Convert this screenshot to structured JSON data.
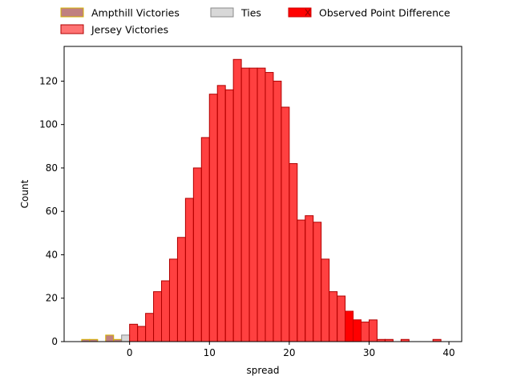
{
  "chart_data": {
    "type": "bar",
    "xlabel": "spread",
    "ylabel": "Count",
    "xlim": [
      -8.2,
      41.6
    ],
    "ylim": [
      0,
      136
    ],
    "x_ticks": [
      0,
      10,
      20,
      30,
      40
    ],
    "y_ticks": [
      0,
      20,
      40,
      60,
      80,
      100,
      120
    ],
    "bin_width": 1,
    "grid": false,
    "legend_position": "top",
    "colors": {
      "ampthill": "#c08080",
      "ampthill_edge": "#d4b000",
      "jersey": "#ff0000",
      "ties": "#d8d8d8",
      "observed": "#ff0000"
    },
    "legend": [
      {
        "label": "Ampthill Victories",
        "key": "ampthill"
      },
      {
        "label": "Ties",
        "key": "ties"
      },
      {
        "label": "Observed Point Difference",
        "key": "observed"
      },
      {
        "label": "Jersey Victories",
        "key": "jersey"
      }
    ],
    "series": [
      {
        "key": "ampthill",
        "bins": [
          {
            "x": -5.5,
            "y": 1
          },
          {
            "x": -4.5,
            "y": 1
          },
          {
            "x": -2.5,
            "y": 3
          },
          {
            "x": -1.5,
            "y": 1
          }
        ]
      },
      {
        "key": "ties",
        "bins": [
          {
            "x": -0.5,
            "y": 3
          }
        ]
      },
      {
        "key": "jersey",
        "bins": [
          {
            "x": 0.5,
            "y": 8
          },
          {
            "x": 1.5,
            "y": 7
          },
          {
            "x": 2.5,
            "y": 13
          },
          {
            "x": 3.5,
            "y": 23
          },
          {
            "x": 4.5,
            "y": 28
          },
          {
            "x": 5.5,
            "y": 38
          },
          {
            "x": 6.5,
            "y": 48
          },
          {
            "x": 7.5,
            "y": 66
          },
          {
            "x": 8.5,
            "y": 80
          },
          {
            "x": 9.5,
            "y": 94
          },
          {
            "x": 10.5,
            "y": 114
          },
          {
            "x": 11.5,
            "y": 118
          },
          {
            "x": 12.5,
            "y": 116
          },
          {
            "x": 13.5,
            "y": 130
          },
          {
            "x": 14.5,
            "y": 126
          },
          {
            "x": 15.5,
            "y": 126
          },
          {
            "x": 16.5,
            "y": 126
          },
          {
            "x": 17.5,
            "y": 124
          },
          {
            "x": 18.5,
            "y": 120
          },
          {
            "x": 19.5,
            "y": 108
          },
          {
            "x": 20.5,
            "y": 82
          },
          {
            "x": 21.5,
            "y": 56
          },
          {
            "x": 22.5,
            "y": 58
          },
          {
            "x": 23.5,
            "y": 55
          },
          {
            "x": 24.5,
            "y": 38
          },
          {
            "x": 25.5,
            "y": 23
          },
          {
            "x": 26.5,
            "y": 21
          },
          {
            "x": 27.5,
            "y": 14
          },
          {
            "x": 28.5,
            "y": 10
          },
          {
            "x": 29.5,
            "y": 9
          },
          {
            "x": 30.5,
            "y": 10
          },
          {
            "x": 31.5,
            "y": 1
          },
          {
            "x": 32.5,
            "y": 1
          },
          {
            "x": 34.5,
            "y": 1
          },
          {
            "x": 38.5,
            "y": 1
          }
        ]
      }
    ],
    "observed_range": [
      27,
      29
    ]
  }
}
